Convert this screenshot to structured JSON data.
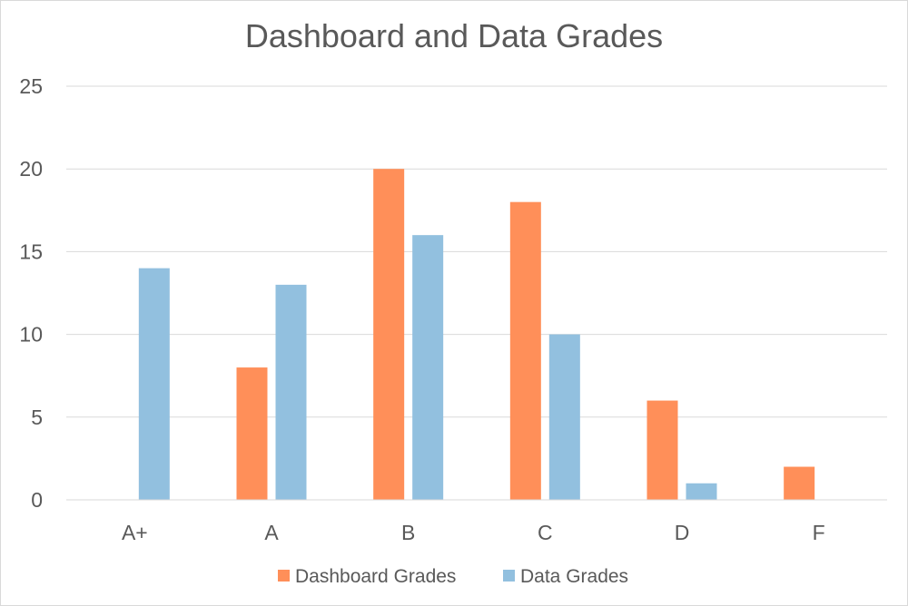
{
  "chart_data": {
    "type": "bar",
    "title": "Dashboard and Data Grades",
    "xlabel": "",
    "ylabel": "",
    "categories": [
      "A+",
      "A",
      "B",
      "C",
      "D",
      "F"
    ],
    "series": [
      {
        "name": "Dashboard Grades",
        "color": "#ff8f59",
        "values": [
          0,
          8,
          20,
          18,
          6,
          2
        ]
      },
      {
        "name": "Data Grades",
        "color": "#92c0df",
        "values": [
          14,
          13,
          16,
          10,
          1,
          0
        ]
      }
    ],
    "ylim": [
      0,
      25
    ],
    "yticks": [
      0,
      5,
      10,
      15,
      20,
      25
    ],
    "grid": true,
    "legend_position": "bottom"
  }
}
